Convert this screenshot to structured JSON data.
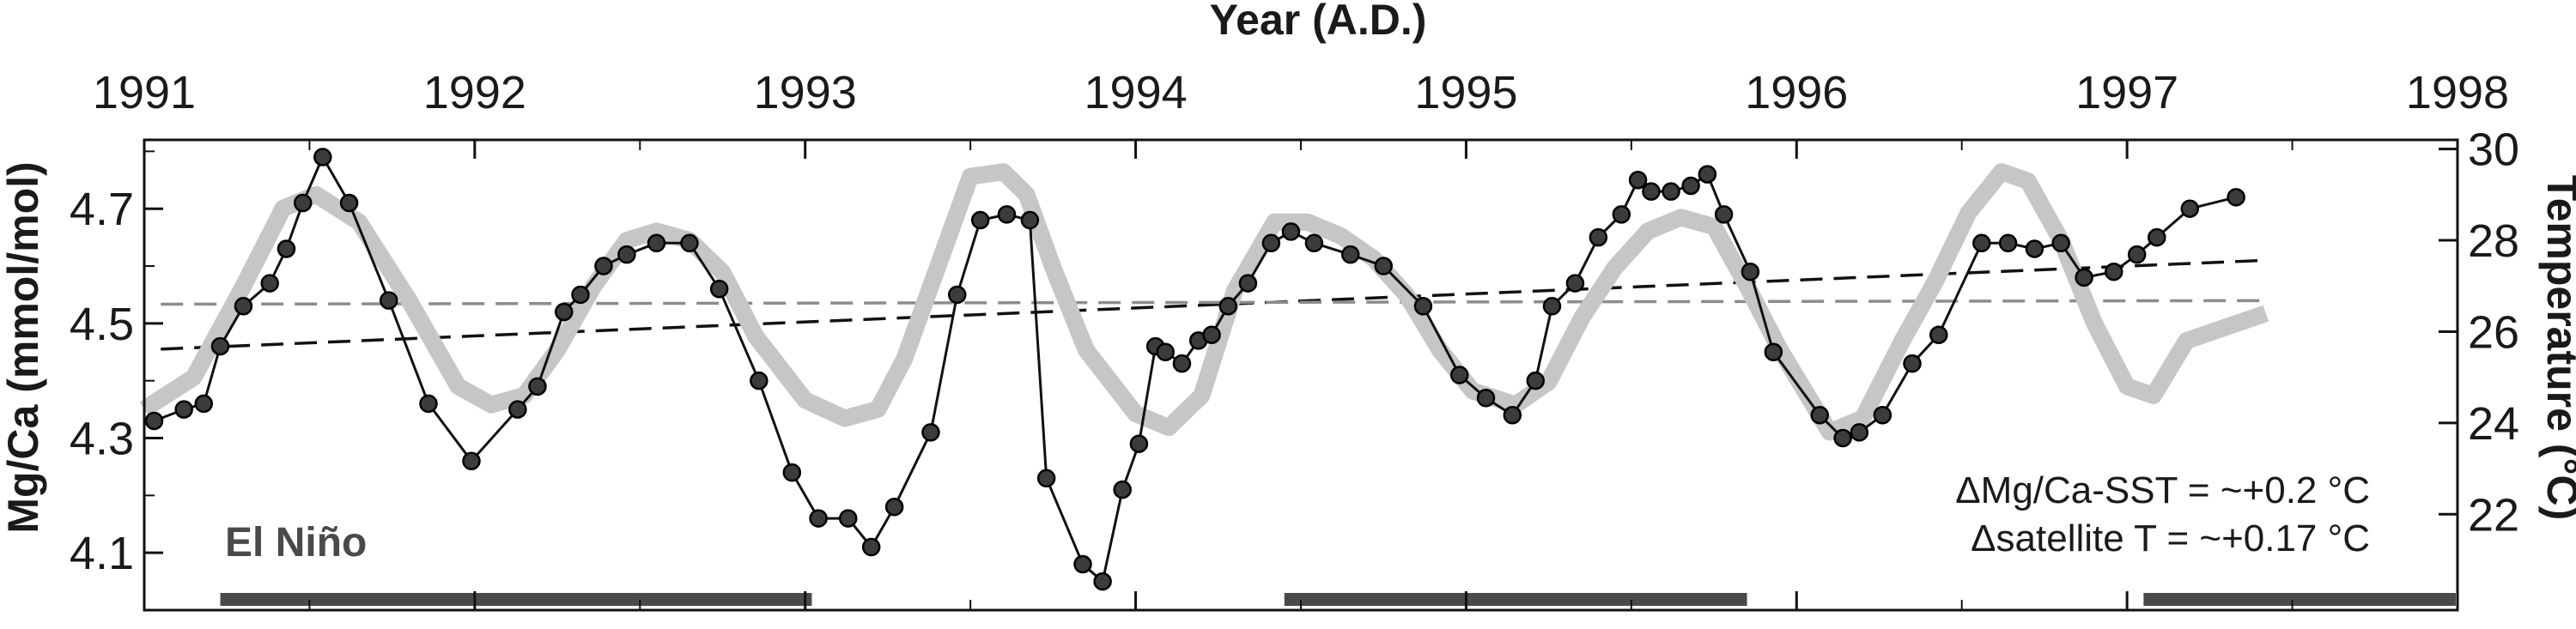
{
  "chart_data": {
    "type": "line",
    "title": "",
    "xlabel": "Year (A.D.)",
    "ylabel_left": "Mg/Ca (mmol/mol)",
    "ylabel_right": "Temperature (°C)",
    "xlim": [
      1991,
      1998
    ],
    "ylim_left": [
      4.0,
      4.82
    ],
    "ylim_right": [
      19.9,
      30.2
    ],
    "x_ticks": [
      "1991",
      "1992",
      "1993",
      "1994",
      "1995",
      "1996",
      "1997",
      "1998"
    ],
    "y_left_ticks": [
      "4.1",
      "4.3",
      "4.5",
      "4.7"
    ],
    "y_right_ticks": [
      "22",
      "24",
      "26",
      "28",
      "30"
    ],
    "grid": false,
    "series": [
      {
        "axis": "left",
        "style": "black line with dark circle markers",
        "x": [
          1991.03,
          1991.12,
          1991.18,
          1991.23,
          1991.3,
          1991.38,
          1991.43,
          1991.48,
          1991.54,
          1991.62,
          1991.74,
          1991.86,
          1991.99,
          1992.13,
          1992.19,
          1992.27,
          1992.32,
          1992.39,
          1992.46,
          1992.55,
          1992.65,
          1992.74,
          1992.86,
          1992.96,
          1993.04,
          1993.13,
          1993.2,
          1993.27,
          1993.38,
          1993.46,
          1993.53,
          1993.61,
          1993.68,
          1993.73,
          1993.84,
          1993.9,
          1993.96,
          1994.01,
          1994.06,
          1994.09,
          1994.14,
          1994.19,
          1994.23,
          1994.28,
          1994.34,
          1994.41,
          1994.47,
          1994.54,
          1994.65,
          1994.75,
          1994.87,
          1994.98,
          1995.06,
          1995.14,
          1995.21,
          1995.26,
          1995.33,
          1995.4,
          1995.47,
          1995.52,
          1995.56,
          1995.62,
          1995.68,
          1995.73,
          1995.78,
          1995.86,
          1995.93,
          1996.07,
          1996.14,
          1996.19,
          1996.26,
          1996.35,
          1996.43,
          1996.56,
          1996.64,
          1996.72,
          1996.8,
          1996.87,
          1996.96,
          1997.03,
          1997.09,
          1997.19,
          1997.33
        ],
        "y": [
          4.33,
          4.35,
          4.36,
          4.46,
          4.53,
          4.57,
          4.63,
          4.71,
          4.79,
          4.71,
          4.54,
          4.36,
          4.26,
          4.35,
          4.39,
          4.52,
          4.55,
          4.6,
          4.62,
          4.64,
          4.64,
          4.56,
          4.4,
          4.24,
          4.16,
          4.16,
          4.11,
          4.18,
          4.31,
          4.55,
          4.68,
          4.69,
          4.68,
          4.23,
          4.08,
          4.05,
          4.21,
          4.29,
          4.46,
          4.45,
          4.43,
          4.47,
          4.48,
          4.53,
          4.57,
          4.64,
          4.66,
          4.64,
          4.62,
          4.6,
          4.53,
          4.41,
          4.37,
          4.34,
          4.4,
          4.53,
          4.57,
          4.65,
          4.69,
          4.75,
          4.73,
          4.73,
          4.74,
          4.76,
          4.69,
          4.59,
          4.45,
          4.34,
          4.3,
          4.31,
          4.34,
          4.43,
          4.48,
          4.64,
          4.64,
          4.63,
          4.64,
          4.58,
          4.59,
          4.62,
          4.65,
          4.7,
          4.72
        ]
      },
      {
        "axis": "right",
        "style": "thick light gray line",
        "x": [
          1991.0,
          1991.15,
          1991.3,
          1991.42,
          1991.52,
          1991.65,
          1991.8,
          1991.95,
          1992.05,
          1992.15,
          1992.25,
          1992.36,
          1992.46,
          1992.55,
          1992.65,
          1992.75,
          1992.85,
          1993.0,
          1993.12,
          1993.22,
          1993.3,
          1993.4,
          1993.5,
          1993.6,
          1993.67,
          1993.75,
          1993.85,
          1994.0,
          1994.1,
          1994.2,
          1994.3,
          1994.42,
          1994.52,
          1994.62,
          1994.72,
          1994.82,
          1994.92,
          1995.02,
          1995.15,
          1995.25,
          1995.35,
          1995.45,
          1995.55,
          1995.65,
          1995.75,
          1995.85,
          1995.95,
          1996.1,
          1996.2,
          1996.32,
          1996.42,
          1996.52,
          1996.62,
          1996.7,
          1996.8,
          1996.9,
          1997.0,
          1997.08,
          1997.18,
          1997.3,
          1997.42
        ],
        "y": [
          24.3,
          25.0,
          27.0,
          28.7,
          29.0,
          28.4,
          26.7,
          24.8,
          24.4,
          24.6,
          25.6,
          27.0,
          28.0,
          28.2,
          28.0,
          27.3,
          25.9,
          24.5,
          24.1,
          24.3,
          25.4,
          27.4,
          29.4,
          29.5,
          29.0,
          27.4,
          25.6,
          24.2,
          23.9,
          24.6,
          26.9,
          28.4,
          28.4,
          28.1,
          27.6,
          26.8,
          25.6,
          24.7,
          24.4,
          24.9,
          26.3,
          27.4,
          28.2,
          28.5,
          28.3,
          27.0,
          25.6,
          23.8,
          24.1,
          25.8,
          27.1,
          28.6,
          29.5,
          29.3,
          28.0,
          26.2,
          24.8,
          24.6,
          25.8,
          26.1,
          26.4
        ]
      },
      {
        "axis": "left",
        "style": "black dashed linear trend",
        "x": [
          1991.05,
          1997.42
        ],
        "y": [
          4.455,
          4.61
        ]
      },
      {
        "axis": "right",
        "style": "gray dashed linear trend",
        "x": [
          1991.05,
          1997.42
        ],
        "y": [
          26.6,
          26.68
        ]
      }
    ],
    "el_nino_periods": [
      [
        1991.23,
        1993.02
      ],
      [
        1994.45,
        1995.85
      ],
      [
        1997.05,
        1998.0
      ]
    ],
    "el_nino_label": "El Niño",
    "annotations": [
      "ΔMg/Ca-SST = ~+0.2 °C",
      "Δsatellite T = ~+0.17 °C"
    ],
    "legend": "none"
  }
}
